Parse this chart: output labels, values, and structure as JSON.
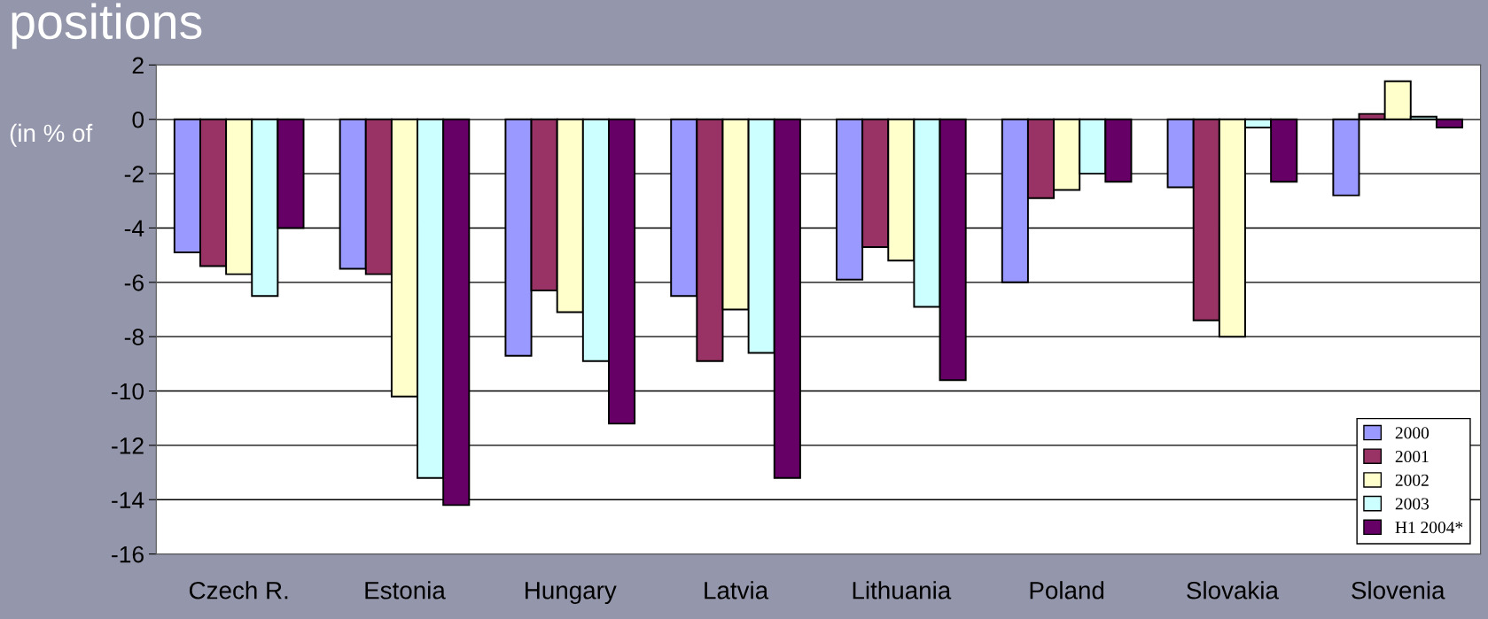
{
  "chart_data": {
    "type": "bar",
    "title": "positions",
    "subtitle": "(in % of",
    "categories": [
      "Czech R.",
      "Estonia",
      "Hungary",
      "Latvia",
      "Lithuania",
      "Poland",
      "Slovakia",
      "Slovenia"
    ],
    "series": [
      {
        "name": "2000",
        "color": "#9999ff",
        "values": [
          -4.9,
          -5.5,
          -8.7,
          -6.5,
          -5.9,
          -6.0,
          -2.5,
          -2.8
        ]
      },
      {
        "name": "2001",
        "color": "#993366",
        "values": [
          -5.4,
          -5.7,
          -6.3,
          -8.9,
          -4.7,
          -2.9,
          -7.4,
          0.2
        ]
      },
      {
        "name": "2002",
        "color": "#ffffcc",
        "values": [
          -5.7,
          -10.2,
          -7.1,
          -7.0,
          -5.2,
          -2.6,
          -8.0,
          1.4
        ]
      },
      {
        "name": "2003",
        "color": "#ccffff",
        "values": [
          -6.5,
          -13.2,
          -8.9,
          -8.6,
          -6.9,
          -2.0,
          -0.3,
          0.1
        ]
      },
      {
        "name": "H1 2004*",
        "color": "#660066",
        "values": [
          -4.0,
          -14.2,
          -11.2,
          -13.2,
          -9.6,
          -2.3,
          -2.3,
          -0.3
        ]
      }
    ],
    "ylim": [
      -16,
      2
    ],
    "yticks": [
      -16,
      -14,
      -12,
      -10,
      -8,
      -6,
      -4,
      -2,
      0,
      2
    ],
    "grid": "y",
    "legend": "bottom right"
  }
}
